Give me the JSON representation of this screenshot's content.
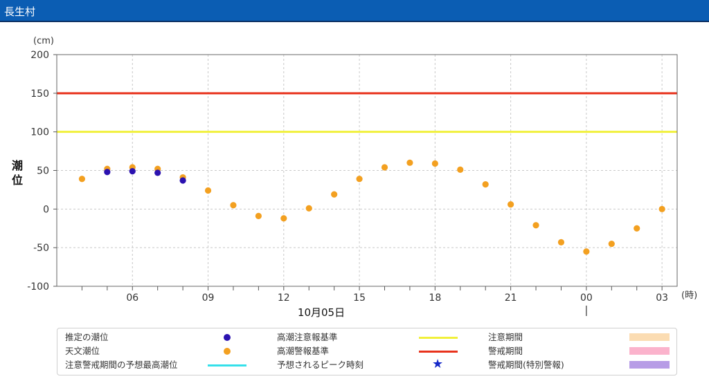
{
  "header": {
    "title": "長生村"
  },
  "chart_data": {
    "type": "scatter",
    "y_unit": "(cm)",
    "x_unit": "(時)",
    "ylabel": "潮位",
    "ylim": [
      -100,
      200
    ],
    "yticks": [
      200,
      150,
      100,
      50,
      0,
      -50,
      -100
    ],
    "x_date_label": "10月05日",
    "x_start_hour": 4,
    "x_end_hour": 27,
    "xticks": [
      {
        "hour": 6,
        "label": "06"
      },
      {
        "hour": 9,
        "label": "09"
      },
      {
        "hour": 12,
        "label": "12"
      },
      {
        "hour": 15,
        "label": "15"
      },
      {
        "hour": 18,
        "label": "18"
      },
      {
        "hour": 21,
        "label": "21"
      },
      {
        "hour": 24,
        "label": "00"
      },
      {
        "hour": 27,
        "label": "03"
      }
    ],
    "day_marker_hour": 24,
    "reference_lines": [
      {
        "name": "高潮警報基準",
        "value": 150,
        "color": "#e8321c"
      },
      {
        "name": "高潮注意報基準",
        "value": 100,
        "color": "#f1f03a"
      }
    ],
    "series": [
      {
        "name": "天文潮位",
        "color": "#f3a020",
        "x": [
          4,
          5,
          6,
          7,
          8,
          9,
          10,
          11,
          12,
          13,
          14,
          15,
          16,
          17,
          18,
          19,
          20,
          21,
          22,
          23,
          24,
          25,
          26,
          27
        ],
        "values": [
          39,
          52,
          54,
          52,
          41,
          24,
          5,
          -9,
          -12,
          1,
          19,
          39,
          54,
          60,
          59,
          51,
          32,
          6,
          -21,
          -43,
          -55,
          -45,
          -25,
          0
        ]
      },
      {
        "name": "推定の潮位",
        "color": "#2b12b0",
        "x": [
          5,
          6,
          7,
          8
        ],
        "values": [
          48,
          49,
          47,
          37
        ]
      }
    ]
  },
  "legend": {
    "items": [
      {
        "label": "推定の潮位",
        "kind": "dot",
        "color": "#2b12b0"
      },
      {
        "label": "天文潮位",
        "kind": "dot",
        "color": "#f3a020"
      },
      {
        "label": "注意警戒期間の予想最高潮位",
        "kind": "line",
        "color": "#35e0ea"
      },
      {
        "label": "高潮注意報基準",
        "kind": "line",
        "color": "#f1f03a"
      },
      {
        "label": "高潮警報基準",
        "kind": "line",
        "color": "#e8321c"
      },
      {
        "label": "予想されるピーク時刻",
        "kind": "star",
        "color": "#1428c8"
      },
      {
        "label": "注意期間",
        "kind": "rect",
        "color": "#fbdcb2"
      },
      {
        "label": "警戒期間",
        "kind": "rect",
        "color": "#fbb3cc"
      },
      {
        "label": "警戒期間(特別警報)",
        "kind": "rect",
        "color": "#b79ce6"
      }
    ]
  }
}
